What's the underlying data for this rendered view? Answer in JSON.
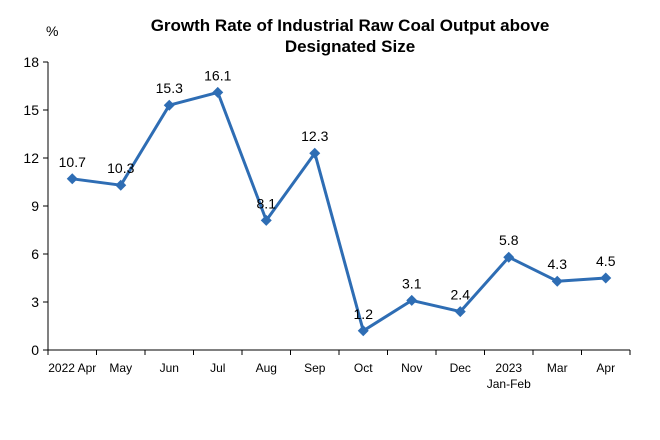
{
  "chart_data": {
    "type": "line",
    "title_line1": "Growth Rate of Industrial Raw Coal Output above",
    "title_line2": "Designated Size",
    "unit_label": "%",
    "categories": [
      [
        "2022 Apr"
      ],
      [
        "May"
      ],
      [
        "Jun"
      ],
      [
        "Jul"
      ],
      [
        "Aug"
      ],
      [
        "Sep"
      ],
      [
        "Oct"
      ],
      [
        "Nov"
      ],
      [
        "Dec"
      ],
      [
        "2023",
        "Jan-Feb"
      ],
      [
        "Mar"
      ],
      [
        "Apr"
      ]
    ],
    "values": [
      10.7,
      10.3,
      15.3,
      16.1,
      8.1,
      12.3,
      1.2,
      3.1,
      2.4,
      5.8,
      4.3,
      4.5
    ],
    "data_labels": [
      "10.7",
      "10.3",
      "15.3",
      "16.1",
      "8.1",
      "12.3",
      "1.2",
      "3.1",
      "2.4",
      "5.8",
      "4.3",
      "4.5"
    ],
    "ylim": [
      0,
      18
    ],
    "yticks": [
      0,
      3,
      6,
      9,
      12,
      15,
      18
    ],
    "grid": false,
    "legend": false,
    "marker": "diamond",
    "series_color": "#2E6DB4"
  }
}
